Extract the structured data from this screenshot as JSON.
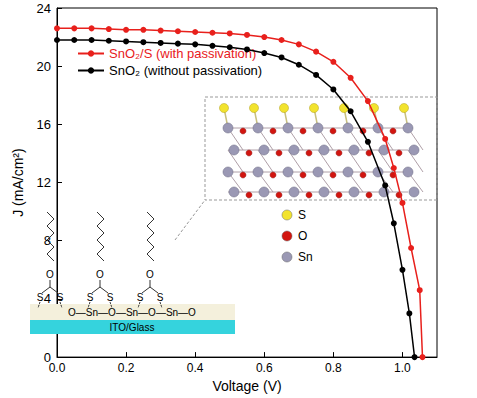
{
  "chart_data": {
    "type": "line",
    "x_label": "Voltage (V)",
    "y_label": "J (mA/cm²)",
    "xlim": [
      0,
      1.1
    ],
    "xticks": [
      {
        "value": 0,
        "label": "0.0"
      },
      0.2,
      0.4,
      0.6,
      0.8,
      {
        "value": 1,
        "label": "1.0"
      }
    ],
    "ylim": [
      0,
      24
    ],
    "yticks": [
      0,
      4,
      8,
      12,
      16,
      20,
      24
    ],
    "grid": false,
    "legend": "upper left",
    "marker": "circle",
    "series": [
      {
        "name": "SnO₂/S (with passivation)",
        "color": "#e8201c",
        "x": [
          0,
          0.05,
          0.1,
          0.15,
          0.2,
          0.25,
          0.3,
          0.35,
          0.4,
          0.45,
          0.5,
          0.55,
          0.6,
          0.65,
          0.7,
          0.75,
          0.8,
          0.85,
          0.9,
          0.95,
          0.975,
          1.0,
          1.025,
          1.05,
          1.058
        ],
        "values": [
          22.6,
          22.6,
          22.6,
          22.55,
          22.5,
          22.5,
          22.45,
          22.4,
          22.35,
          22.3,
          22.25,
          22.15,
          22.0,
          21.8,
          21.5,
          21.0,
          20.3,
          19.2,
          17.6,
          15.0,
          13.0,
          10.6,
          7.5,
          4.6,
          0
        ]
      },
      {
        "name": "SnO₂ (without passivation)",
        "color": "#000000",
        "x": [
          0,
          0.05,
          0.1,
          0.15,
          0.2,
          0.25,
          0.3,
          0.35,
          0.4,
          0.45,
          0.5,
          0.55,
          0.6,
          0.65,
          0.7,
          0.75,
          0.8,
          0.85,
          0.9,
          0.95,
          0.975,
          1.0,
          1.02,
          1.035
        ],
        "values": [
          21.8,
          21.8,
          21.8,
          21.75,
          21.7,
          21.65,
          21.6,
          21.55,
          21.5,
          21.4,
          21.3,
          21.15,
          20.9,
          20.6,
          20.1,
          19.4,
          18.4,
          16.9,
          14.8,
          11.8,
          9.2,
          6.0,
          3.0,
          0
        ]
      }
    ],
    "inset": {
      "atom_legend": [
        {
          "label": "S",
          "color": "#f2e32e"
        },
        {
          "label": "O",
          "color": "#d2150f"
        },
        {
          "label": "Sn",
          "color": "#9a98b4"
        }
      ],
      "molecule": {
        "linker": "O",
        "anchors": [
          "S",
          "S"
        ]
      },
      "surface": "O—Sn—O—Sn—O—Sn—O",
      "substrate": "ITO/Glass"
    }
  }
}
